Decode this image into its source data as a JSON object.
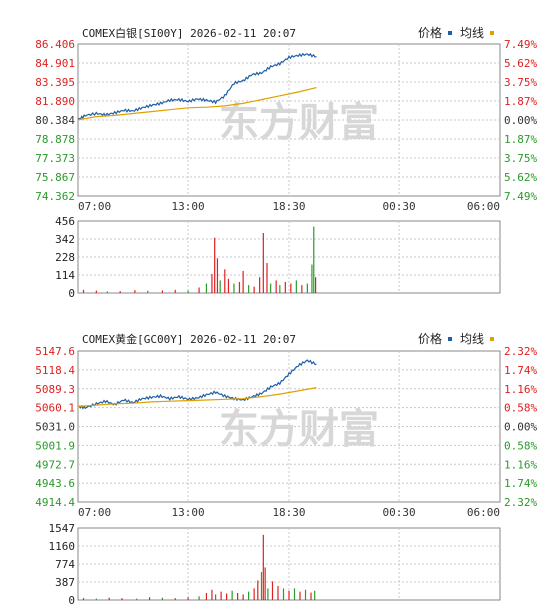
{
  "chart_data": [
    {
      "type": "line",
      "title": "COMEX白银[SI00Y] 2026-02-11 20:07",
      "legend": [
        {
          "label": "价格",
          "color": "#1f5fa8"
        },
        {
          "label": "均线",
          "color": "#e0a000"
        }
      ],
      "x_ticks": [
        "07:00",
        "13:00",
        "18:30",
        "00:30",
        "06:00"
      ],
      "y_ticks": [
        "86.406",
        "84.901",
        "83.395",
        "81.890",
        "80.384",
        "78.878",
        "77.373",
        "75.867",
        "74.362"
      ],
      "pct_ticks": [
        "7.49%",
        "5.62%",
        "3.75%",
        "1.87%",
        "0.00%",
        "1.87%",
        "3.75%",
        "5.62%",
        "7.49%"
      ],
      "ylim": [
        74.362,
        86.406
      ],
      "series": [
        {
          "key": "price",
          "x": [
            0,
            0.4,
            1,
            1.5,
            2,
            2.5,
            3,
            3.5,
            4,
            4.5,
            5,
            5.5,
            6,
            6.5,
            7,
            7.5,
            8,
            8.5,
            9,
            9.5,
            10,
            10.5,
            11,
            11.5,
            12,
            12.5,
            13
          ],
          "values": [
            80.4,
            80.75,
            80.9,
            80.8,
            80.95,
            81.15,
            81.1,
            81.35,
            81.55,
            81.7,
            81.95,
            82.0,
            81.85,
            82.05,
            81.95,
            81.8,
            82.3,
            83.3,
            83.5,
            84.0,
            84.1,
            84.6,
            84.85,
            85.35,
            85.5,
            85.6,
            85.4
          ]
        },
        {
          "key": "average",
          "x": [
            0,
            1,
            2,
            3,
            4,
            5,
            6,
            7,
            8,
            9,
            10,
            11,
            12,
            13
          ],
          "values": [
            80.4,
            80.65,
            80.75,
            80.9,
            81.05,
            81.2,
            81.35,
            81.4,
            81.5,
            81.7,
            82.0,
            82.3,
            82.6,
            82.95
          ]
        }
      ],
      "volume": {
        "ticks": [
          "456",
          "342",
          "228",
          "114",
          "0"
        ],
        "ylim": [
          0,
          456
        ],
        "spikes": [
          {
            "x": 0.3,
            "v": 20,
            "c": "red"
          },
          {
            "x": 1.0,
            "v": 15,
            "c": "red"
          },
          {
            "x": 1.6,
            "v": 10,
            "c": "green"
          },
          {
            "x": 2.3,
            "v": 12,
            "c": "red"
          },
          {
            "x": 3.1,
            "v": 18,
            "c": "red"
          },
          {
            "x": 3.8,
            "v": 14,
            "c": "green"
          },
          {
            "x": 4.6,
            "v": 16,
            "c": "red"
          },
          {
            "x": 5.3,
            "v": 20,
            "c": "red"
          },
          {
            "x": 6.0,
            "v": 15,
            "c": "green"
          },
          {
            "x": 6.6,
            "v": 35,
            "c": "red"
          },
          {
            "x": 7.0,
            "v": 60,
            "c": "green"
          },
          {
            "x": 7.3,
            "v": 120,
            "c": "red"
          },
          {
            "x": 7.45,
            "v": 350,
            "c": "red"
          },
          {
            "x": 7.6,
            "v": 220,
            "c": "red"
          },
          {
            "x": 7.75,
            "v": 80,
            "c": "green"
          },
          {
            "x": 8.0,
            "v": 150,
            "c": "red"
          },
          {
            "x": 8.2,
            "v": 90,
            "c": "red"
          },
          {
            "x": 8.5,
            "v": 60,
            "c": "green"
          },
          {
            "x": 8.8,
            "v": 70,
            "c": "red"
          },
          {
            "x": 9.0,
            "v": 140,
            "c": "red"
          },
          {
            "x": 9.3,
            "v": 50,
            "c": "green"
          },
          {
            "x": 9.6,
            "v": 40,
            "c": "red"
          },
          {
            "x": 9.9,
            "v": 100,
            "c": "red"
          },
          {
            "x": 10.1,
            "v": 380,
            "c": "red"
          },
          {
            "x": 10.3,
            "v": 190,
            "c": "red"
          },
          {
            "x": 10.5,
            "v": 60,
            "c": "green"
          },
          {
            "x": 10.8,
            "v": 80,
            "c": "red"
          },
          {
            "x": 11.0,
            "v": 50,
            "c": "green"
          },
          {
            "x": 11.3,
            "v": 70,
            "c": "red"
          },
          {
            "x": 11.6,
            "v": 60,
            "c": "red"
          },
          {
            "x": 11.9,
            "v": 80,
            "c": "green"
          },
          {
            "x": 12.2,
            "v": 50,
            "c": "red"
          },
          {
            "x": 12.5,
            "v": 60,
            "c": "green"
          },
          {
            "x": 12.75,
            "v": 180,
            "c": "green"
          },
          {
            "x": 12.85,
            "v": 420,
            "c": "green"
          },
          {
            "x": 12.95,
            "v": 100,
            "c": "red"
          }
        ]
      }
    },
    {
      "type": "line",
      "title": "COMEX黄金[GC00Y] 2026-02-11 20:07",
      "legend": [
        {
          "label": "价格",
          "color": "#1f5fa8"
        },
        {
          "label": "均线",
          "color": "#e0a000"
        }
      ],
      "x_ticks": [
        "07:00",
        "13:00",
        "18:30",
        "00:30",
        "06:00"
      ],
      "y_ticks": [
        "5147.6",
        "5118.4",
        "5089.3",
        "5060.1",
        "5031.0",
        "5001.9",
        "4972.7",
        "4943.6",
        "4914.4"
      ],
      "pct_ticks": [
        "2.32%",
        "1.74%",
        "1.16%",
        "0.58%",
        "0.00%",
        "0.58%",
        "1.16%",
        "1.74%",
        "2.32%"
      ],
      "ylim": [
        4914.4,
        5147.6
      ],
      "series": [
        {
          "key": "price",
          "x": [
            0,
            0.4,
            1,
            1.5,
            2,
            2.5,
            3,
            3.5,
            4,
            4.5,
            5,
            5.5,
            6,
            6.5,
            7,
            7.5,
            8,
            8.5,
            9,
            9.5,
            10,
            10.5,
            11,
            11.5,
            12,
            12.5,
            13
          ],
          "values": [
            5062,
            5060,
            5066,
            5070,
            5065,
            5072,
            5068,
            5074,
            5076,
            5078,
            5074,
            5077,
            5073,
            5075,
            5080,
            5084,
            5078,
            5074,
            5072,
            5077,
            5082,
            5092,
            5098,
            5112,
            5125,
            5133,
            5127
          ]
        },
        {
          "key": "average",
          "x": [
            0,
            1,
            2,
            3,
            4,
            5,
            6,
            7,
            8,
            9,
            10,
            11,
            12,
            13
          ],
          "values": [
            5062,
            5064,
            5066,
            5067,
            5069,
            5070,
            5071,
            5072,
            5073,
            5074,
            5077,
            5081,
            5086,
            5091
          ]
        }
      ],
      "volume": {
        "ticks": [
          "1547",
          "1160",
          "774",
          "387",
          "0"
        ],
        "ylim": [
          0,
          1547
        ],
        "spikes": [
          {
            "x": 0.3,
            "v": 40,
            "c": "red"
          },
          {
            "x": 1.0,
            "v": 30,
            "c": "green"
          },
          {
            "x": 1.7,
            "v": 50,
            "c": "red"
          },
          {
            "x": 2.4,
            "v": 40,
            "c": "red"
          },
          {
            "x": 3.2,
            "v": 30,
            "c": "green"
          },
          {
            "x": 3.9,
            "v": 60,
            "c": "red"
          },
          {
            "x": 4.6,
            "v": 50,
            "c": "green"
          },
          {
            "x": 5.3,
            "v": 40,
            "c": "red"
          },
          {
            "x": 6.0,
            "v": 60,
            "c": "red"
          },
          {
            "x": 6.6,
            "v": 80,
            "c": "green"
          },
          {
            "x": 7.0,
            "v": 150,
            "c": "red"
          },
          {
            "x": 7.3,
            "v": 220,
            "c": "red"
          },
          {
            "x": 7.5,
            "v": 120,
            "c": "green"
          },
          {
            "x": 7.8,
            "v": 180,
            "c": "red"
          },
          {
            "x": 8.1,
            "v": 140,
            "c": "red"
          },
          {
            "x": 8.4,
            "v": 200,
            "c": "green"
          },
          {
            "x": 8.7,
            "v": 150,
            "c": "red"
          },
          {
            "x": 9.0,
            "v": 120,
            "c": "red"
          },
          {
            "x": 9.3,
            "v": 180,
            "c": "green"
          },
          {
            "x": 9.6,
            "v": 250,
            "c": "red"
          },
          {
            "x": 9.8,
            "v": 420,
            "c": "red"
          },
          {
            "x": 10.0,
            "v": 600,
            "c": "green"
          },
          {
            "x": 10.1,
            "v": 1400,
            "c": "red"
          },
          {
            "x": 10.2,
            "v": 700,
            "c": "red"
          },
          {
            "x": 10.35,
            "v": 250,
            "c": "green"
          },
          {
            "x": 10.6,
            "v": 400,
            "c": "red"
          },
          {
            "x": 10.9,
            "v": 300,
            "c": "red"
          },
          {
            "x": 11.2,
            "v": 250,
            "c": "green"
          },
          {
            "x": 11.5,
            "v": 200,
            "c": "red"
          },
          {
            "x": 11.8,
            "v": 250,
            "c": "green"
          },
          {
            "x": 12.1,
            "v": 180,
            "c": "red"
          },
          {
            "x": 12.4,
            "v": 220,
            "c": "green"
          },
          {
            "x": 12.7,
            "v": 160,
            "c": "red"
          },
          {
            "x": 12.9,
            "v": 200,
            "c": "green"
          }
        ]
      }
    }
  ],
  "watermark": "东方财富",
  "colors": {
    "price": "#1f5fa8",
    "average": "#e0a000",
    "up": "#e02020",
    "down": "#2a9a2a",
    "axis": "#555555",
    "grid": "#c8c8c8"
  }
}
